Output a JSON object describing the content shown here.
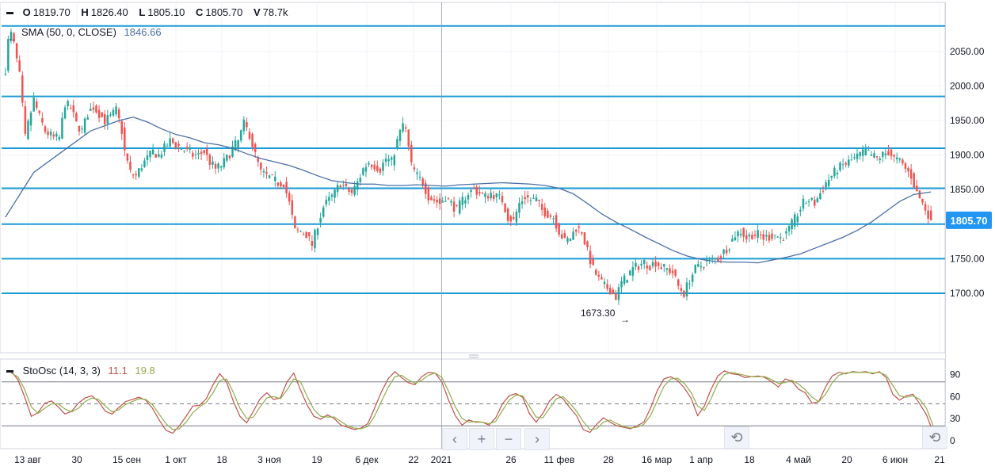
{
  "header": {
    "ohlc": [
      {
        "key": "O",
        "value": "1819.70"
      },
      {
        "key": "H",
        "value": "1826.40"
      },
      {
        "key": "L",
        "value": "1805.10"
      },
      {
        "key": "C",
        "value": "1805.70"
      },
      {
        "key": "V",
        "value": "78.7k"
      }
    ],
    "sma_label": "SMA (50, 0, CLOSE)",
    "sma_value": "1846.66",
    "sto_label": "StoOsc (14, 3, 3)",
    "sto_k": "11.1",
    "sto_d": "19.8"
  },
  "colors": {
    "up": "#26a69a",
    "down": "#ef5350",
    "sma": "#4a6fa5",
    "hline": "#1a9bd7",
    "k": "#c0504d",
    "d": "#8fad4a",
    "last_price_bg": "#2196f3"
  },
  "annotations": {
    "low_label": "1673.30",
    "low_value": 1673.3
  },
  "nav": {
    "prev": "‹",
    "zoom_in": "+",
    "zoom_out": "−",
    "next": "›",
    "reset": "⟲"
  },
  "chart_data": [
    {
      "type": "candlestick",
      "title": "",
      "y_ticks": [
        1700,
        1750,
        1800,
        1850,
        1900,
        1950,
        2000,
        2050
      ],
      "y_tick_labels": [
        "1700.00",
        "1750.00",
        "1800.00",
        "1850.00",
        "1900.00",
        "1950.00",
        "2000.00",
        "2050.00"
      ],
      "ylim": [
        1615,
        2120
      ],
      "last_price": 1805.7,
      "last_price_label": "1805.70",
      "horizontal_lines": [
        2087,
        1985,
        1910,
        1852,
        1800,
        1750,
        1700
      ],
      "x_labels": [
        "13 авг",
        "30",
        "15 сен",
        "1 окт",
        "18",
        "3 ноя",
        "19",
        "6 дек",
        "22",
        "2021",
        "26",
        "11 фев",
        "28",
        "16 мар",
        "1 апр",
        "18",
        "4 май",
        "20",
        "6 июн",
        "21"
      ],
      "close_path": [
        [
          0,
          2025
        ],
        [
          1,
          2065
        ],
        [
          2,
          2075
        ],
        [
          3,
          2060
        ],
        [
          5,
          2015
        ],
        [
          7,
          1925
        ],
        [
          8,
          1945
        ],
        [
          10,
          1980
        ],
        [
          12,
          1955
        ],
        [
          14,
          1935
        ],
        [
          17,
          1925
        ],
        [
          19,
          1925
        ],
        [
          21,
          1975
        ],
        [
          23,
          1968
        ],
        [
          25,
          1945
        ],
        [
          27,
          1935
        ],
        [
          29,
          1960
        ],
        [
          31,
          1970
        ],
        [
          33,
          1960
        ],
        [
          35,
          1950
        ],
        [
          37,
          1955
        ],
        [
          39,
          1965
        ],
        [
          41,
          1935
        ],
        [
          42,
          1905
        ],
        [
          44,
          1875
        ],
        [
          46,
          1870
        ],
        [
          48,
          1885
        ],
        [
          50,
          1895
        ],
        [
          52,
          1905
        ],
        [
          54,
          1900
        ],
        [
          56,
          1910
        ],
        [
          58,
          1920
        ],
        [
          60,
          1915
        ],
        [
          62,
          1910
        ],
        [
          64,
          1905
        ],
        [
          66,
          1900
        ],
        [
          68,
          1900
        ],
        [
          70,
          1905
        ],
        [
          72,
          1890
        ],
        [
          74,
          1880
        ],
        [
          76,
          1885
        ],
        [
          78,
          1895
        ],
        [
          80,
          1910
        ],
        [
          82,
          1920
        ],
        [
          84,
          1945
        ],
        [
          86,
          1930
        ],
        [
          88,
          1900
        ],
        [
          90,
          1875
        ],
        [
          92,
          1870
        ],
        [
          94,
          1865
        ],
        [
          96,
          1860
        ],
        [
          98,
          1860
        ],
        [
          100,
          1830
        ],
        [
          102,
          1790
        ],
        [
          104,
          1790
        ],
        [
          106,
          1785
        ],
        [
          108,
          1770
        ],
        [
          110,
          1800
        ],
        [
          112,
          1825
        ],
        [
          114,
          1835
        ],
        [
          116,
          1845
        ],
        [
          118,
          1860
        ],
        [
          120,
          1850
        ],
        [
          122,
          1845
        ],
        [
          124,
          1860
        ],
        [
          126,
          1880
        ],
        [
          128,
          1890
        ],
        [
          130,
          1885
        ],
        [
          132,
          1880
        ],
        [
          134,
          1895
        ],
        [
          136,
          1890
        ],
        [
          138,
          1920
        ],
        [
          140,
          1945
        ],
        [
          141,
          1935
        ],
        [
          143,
          1885
        ],
        [
          145,
          1870
        ],
        [
          147,
          1860
        ],
        [
          149,
          1840
        ],
        [
          151,
          1835
        ],
        [
          153,
          1830
        ],
        [
          155,
          1840
        ],
        [
          157,
          1830
        ],
        [
          159,
          1820
        ],
        [
          161,
          1835
        ],
        [
          163,
          1845
        ],
        [
          165,
          1850
        ],
        [
          167,
          1845
        ],
        [
          169,
          1840
        ],
        [
          171,
          1845
        ],
        [
          173,
          1840
        ],
        [
          175,
          1835
        ],
        [
          177,
          1810
        ],
        [
          179,
          1805
        ],
        [
          181,
          1830
        ],
        [
          183,
          1840
        ],
        [
          185,
          1835
        ],
        [
          187,
          1835
        ],
        [
          189,
          1820
        ],
        [
          191,
          1815
        ],
        [
          193,
          1810
        ],
        [
          195,
          1790
        ],
        [
          197,
          1775
        ],
        [
          199,
          1780
        ],
        [
          201,
          1795
        ],
        [
          203,
          1790
        ],
        [
          205,
          1760
        ],
        [
          207,
          1735
        ],
        [
          209,
          1720
        ],
        [
          211,
          1710
        ],
        [
          213,
          1705
        ],
        [
          215,
          1695
        ],
        [
          217,
          1715
        ],
        [
          219,
          1725
        ],
        [
          221,
          1735
        ],
        [
          223,
          1740
        ],
        [
          225,
          1745
        ],
        [
          227,
          1740
        ],
        [
          229,
          1745
        ],
        [
          231,
          1738
        ],
        [
          233,
          1735
        ],
        [
          235,
          1730
        ],
        [
          237,
          1710
        ],
        [
          239,
          1700
        ],
        [
          241,
          1720
        ],
        [
          243,
          1735
        ],
        [
          245,
          1740
        ],
        [
          247,
          1745
        ],
        [
          249,
          1748
        ],
        [
          251,
          1750
        ],
        [
          253,
          1760
        ],
        [
          255,
          1770
        ],
        [
          257,
          1785
        ],
        [
          259,
          1790
        ],
        [
          261,
          1780
        ],
        [
          263,
          1785
        ],
        [
          265,
          1785
        ],
        [
          267,
          1780
        ],
        [
          269,
          1782
        ],
        [
          271,
          1785
        ],
        [
          273,
          1780
        ],
        [
          275,
          1785
        ],
        [
          277,
          1800
        ],
        [
          279,
          1815
        ],
        [
          281,
          1830
        ],
        [
          283,
          1835
        ],
        [
          285,
          1830
        ],
        [
          287,
          1845
        ],
        [
          289,
          1860
        ],
        [
          291,
          1870
        ],
        [
          293,
          1880
        ],
        [
          295,
          1885
        ],
        [
          297,
          1890
        ],
        [
          299,
          1895
        ],
        [
          301,
          1900
        ],
        [
          303,
          1905
        ],
        [
          305,
          1900
        ],
        [
          307,
          1895
        ],
        [
          309,
          1900
        ],
        [
          311,
          1905
        ],
        [
          313,
          1895
        ],
        [
          315,
          1890
        ],
        [
          317,
          1880
        ],
        [
          319,
          1870
        ],
        [
          321,
          1845
        ],
        [
          323,
          1830
        ],
        [
          325,
          1815
        ],
        [
          326,
          1805.7
        ]
      ],
      "sma_path": [
        [
          0,
          1810
        ],
        [
          10,
          1875
        ],
        [
          20,
          1905
        ],
        [
          30,
          1935
        ],
        [
          40,
          1950
        ],
        [
          45,
          1955
        ],
        [
          50,
          1948
        ],
        [
          55,
          1938
        ],
        [
          60,
          1930
        ],
        [
          65,
          1925
        ],
        [
          70,
          1918
        ],
        [
          75,
          1915
        ],
        [
          80,
          1910
        ],
        [
          85,
          1902
        ],
        [
          90,
          1895
        ],
        [
          95,
          1890
        ],
        [
          100,
          1885
        ],
        [
          105,
          1878
        ],
        [
          110,
          1870
        ],
        [
          115,
          1863
        ],
        [
          120,
          1860
        ],
        [
          125,
          1858
        ],
        [
          130,
          1858
        ],
        [
          135,
          1856
        ],
        [
          140,
          1856
        ],
        [
          145,
          1857
        ],
        [
          150,
          1856
        ],
        [
          155,
          1855
        ],
        [
          160,
          1857
        ],
        [
          165,
          1858
        ],
        [
          170,
          1859
        ],
        [
          175,
          1860
        ],
        [
          180,
          1859
        ],
        [
          185,
          1858
        ],
        [
          190,
          1856
        ],
        [
          195,
          1852
        ],
        [
          200,
          1844
        ],
        [
          205,
          1830
        ],
        [
          210,
          1815
        ],
        [
          215,
          1803
        ],
        [
          220,
          1793
        ],
        [
          225,
          1782
        ],
        [
          230,
          1772
        ],
        [
          235,
          1762
        ],
        [
          240,
          1754
        ],
        [
          245,
          1749
        ],
        [
          250,
          1746
        ],
        [
          255,
          1745
        ],
        [
          260,
          1745
        ],
        [
          265,
          1744
        ],
        [
          270,
          1748
        ],
        [
          275,
          1752
        ],
        [
          280,
          1757
        ],
        [
          285,
          1765
        ],
        [
          290,
          1773
        ],
        [
          295,
          1781
        ],
        [
          300,
          1791
        ],
        [
          305,
          1803
        ],
        [
          310,
          1818
        ],
        [
          315,
          1833
        ],
        [
          320,
          1843
        ],
        [
          326,
          1846.66
        ]
      ]
    },
    {
      "type": "line",
      "title": "",
      "y_ticks": [
        0,
        30,
        60,
        90
      ],
      "ylim": [
        -10,
        110
      ],
      "levels": [
        80,
        50,
        20
      ],
      "series": [
        {
          "name": "%K",
          "values": [
            95,
            83,
            60,
            33,
            38,
            51,
            54,
            46,
            36,
            40,
            51,
            58,
            61,
            53,
            40,
            36,
            45,
            53,
            56,
            59,
            55,
            44,
            28,
            14,
            10,
            20,
            33,
            47,
            48,
            57,
            76,
            91,
            80,
            54,
            33,
            24,
            40,
            57,
            65,
            56,
            58,
            80,
            92,
            69,
            48,
            33,
            29,
            35,
            30,
            21,
            18,
            15,
            17,
            23,
            44,
            66,
            84,
            94,
            86,
            79,
            76,
            87,
            93,
            92,
            80,
            55,
            34,
            21,
            28,
            25,
            25,
            21,
            31,
            50,
            61,
            64,
            59,
            37,
            25,
            37,
            54,
            63,
            57,
            45,
            34,
            15,
            11,
            22,
            31,
            25,
            20,
            18,
            16,
            20,
            25,
            44,
            68,
            84,
            87,
            82,
            72,
            58,
            34,
            47,
            70,
            88,
            95,
            91,
            90,
            86,
            87,
            88,
            86,
            80,
            73,
            84,
            81,
            70,
            65,
            51,
            53,
            73,
            88,
            93,
            91,
            94,
            93,
            94,
            91,
            94,
            86,
            63,
            55,
            61,
            63,
            50,
            35,
            11
          ]
        },
        {
          "name": "%D",
          "values": [
            92,
            87,
            70,
            46,
            37,
            44,
            50,
            50,
            43,
            39,
            44,
            53,
            58,
            56,
            47,
            39,
            42,
            49,
            53,
            57,
            56,
            49,
            36,
            23,
            15,
            16,
            25,
            38,
            46,
            52,
            65,
            82,
            84,
            66,
            44,
            30,
            32,
            46,
            58,
            60,
            57,
            69,
            84,
            80,
            60,
            42,
            33,
            32,
            32,
            26,
            20,
            17,
            16,
            19,
            33,
            53,
            72,
            87,
            89,
            83,
            78,
            82,
            89,
            92,
            86,
            67,
            46,
            30,
            25,
            26,
            25,
            23,
            26,
            41,
            55,
            62,
            61,
            47,
            32,
            31,
            44,
            57,
            60,
            51,
            40,
            26,
            15,
            16,
            25,
            28,
            23,
            19,
            17,
            18,
            22,
            34,
            54,
            74,
            84,
            85,
            78,
            66,
            47,
            41,
            57,
            78,
            90,
            93,
            91,
            89,
            87,
            87,
            87,
            83,
            78,
            79,
            82,
            77,
            69,
            59,
            53,
            63,
            79,
            89,
            92,
            93,
            93,
            93,
            92,
            93,
            89,
            75,
            61,
            59,
            61,
            56,
            44,
            20
          ]
        }
      ]
    }
  ]
}
